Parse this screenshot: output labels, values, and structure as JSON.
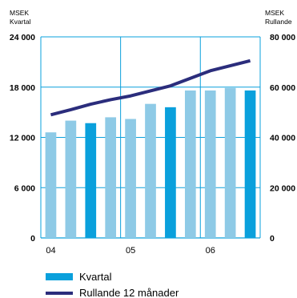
{
  "chart_data": {
    "type": "bar",
    "categories": [
      "",
      "",
      "",
      "",
      "",
      "",
      "",
      "",
      "",
      "",
      ""
    ],
    "x_tick_labels": [
      "04",
      "05",
      "06"
    ],
    "left_axis": {
      "unit": "MSEK",
      "title": "Kvartal",
      "ylim": [
        0,
        24000
      ],
      "ticks": [
        "0",
        "6 000",
        "12 000",
        "18 000",
        "24 000"
      ],
      "tick_values": [
        0,
        6000,
        12000,
        18000,
        24000
      ]
    },
    "right_axis": {
      "unit": "MSEK",
      "title": "Rullande",
      "ylim": [
        0,
        80000
      ],
      "ticks": [
        "0",
        "20 000",
        "40 000",
        "60 000",
        "80 000"
      ],
      "tick_values": [
        0,
        20000,
        40000,
        60000,
        80000
      ]
    },
    "series": [
      {
        "name": "Kvartal",
        "type": "bar",
        "axis": "left",
        "values": [
          12600,
          14000,
          13700,
          14400,
          14200,
          16000,
          15600,
          17600,
          17600,
          17900,
          17600
        ],
        "highlighted": [
          false,
          false,
          true,
          false,
          false,
          false,
          true,
          false,
          false,
          false,
          true
        ]
      },
      {
        "name": "Rullande 12 månader",
        "type": "line",
        "axis": "right",
        "values": [
          49000,
          51000,
          53200,
          55000,
          56500,
          58500,
          60500,
          63500,
          66500,
          68500,
          70500
        ]
      }
    ],
    "colors": {
      "bar_light": "#8ecae6",
      "bar_dark": "#0aa0dc",
      "line": "#2b2d7c",
      "grid": "#0aa0dc",
      "plot_background": "#ffffff"
    },
    "grid": true,
    "legend": "bottom-left"
  },
  "legend": {
    "items": [
      {
        "label": "Kvartal",
        "swatch": "bar"
      },
      {
        "label": "Rullande 12 månader",
        "swatch": "line"
      }
    ]
  }
}
